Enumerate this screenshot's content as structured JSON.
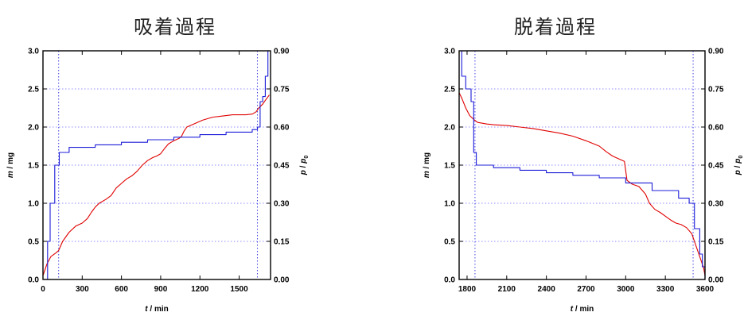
{
  "chart_data": [
    {
      "type": "line",
      "title": "吸着過程",
      "xlabel": "t / min",
      "ylabel_left": "m / mg",
      "ylabel_right": "p / p0",
      "xlim": [
        0,
        1740
      ],
      "xticks": [
        0,
        300,
        600,
        900,
        1200,
        1500
      ],
      "ylim_left": [
        0.0,
        3.0
      ],
      "yticks_left": [
        "0.0",
        "0.5",
        "1.0",
        "1.5",
        "2.0",
        "2.5",
        "3.0"
      ],
      "ylim_right": [
        0.0,
        0.9
      ],
      "yticks_right": [
        "0.00",
        "0.15",
        "0.30",
        "0.45",
        "0.60",
        "0.75",
        "0.90"
      ],
      "grid_y": "dotted",
      "vlines": [
        120,
        1640
      ],
      "series": [
        {
          "color": "#e00000",
          "axis": "left",
          "x": [
            0,
            30,
            60,
            100,
            120,
            150,
            200,
            250,
            300,
            340,
            370,
            400,
            430,
            480,
            520,
            560,
            600,
            640,
            680,
            720,
            760,
            800,
            840,
            870,
            900,
            930,
            960,
            1000,
            1040,
            1060,
            1080,
            1100,
            1140,
            1180,
            1220,
            1260,
            1300,
            1350,
            1400,
            1450,
            1500,
            1550,
            1600,
            1630,
            1650,
            1680,
            1700,
            1730
          ],
          "y": [
            0.05,
            0.2,
            0.3,
            0.35,
            0.38,
            0.5,
            0.62,
            0.7,
            0.74,
            0.8,
            0.88,
            0.95,
            1.0,
            1.05,
            1.1,
            1.2,
            1.26,
            1.32,
            1.36,
            1.42,
            1.5,
            1.56,
            1.6,
            1.62,
            1.65,
            1.72,
            1.78,
            1.82,
            1.85,
            1.88,
            1.95,
            2.0,
            2.03,
            2.06,
            2.09,
            2.11,
            2.13,
            2.14,
            2.15,
            2.16,
            2.16,
            2.16,
            2.17,
            2.2,
            2.25,
            2.3,
            2.35,
            2.42
          ]
        },
        {
          "color": "#1c1cd8",
          "axis": "right",
          "step": true,
          "x": [
            0,
            35,
            55,
            90,
            125,
            200,
            400,
            600,
            800,
            1000,
            1200,
            1400,
            1600,
            1640,
            1660,
            1680,
            1700,
            1720,
            1740
          ],
          "y": [
            0.0,
            0.15,
            0.3,
            0.45,
            0.5,
            0.52,
            0.53,
            0.54,
            0.55,
            0.56,
            0.57,
            0.58,
            0.59,
            0.6,
            0.7,
            0.72,
            0.8,
            0.9,
            0.9
          ]
        }
      ]
    },
    {
      "type": "line",
      "title": "脱着過程",
      "xlabel": "t / min",
      "ylabel_left": "m / mg",
      "ylabel_right": "p / p0",
      "xlim": [
        1740,
        3600
      ],
      "xticks": [
        1800,
        2100,
        2400,
        2700,
        3000,
        3300,
        3600
      ],
      "ylim_left": [
        0.0,
        3.0
      ],
      "yticks_left": [
        "0.0",
        "0.5",
        "1.0",
        "1.5",
        "2.0",
        "2.5",
        "3.0"
      ],
      "ylim_right": [
        0.0,
        0.9
      ],
      "yticks_right": [
        "0.00",
        "0.15",
        "0.30",
        "0.45",
        "0.60",
        "0.75",
        "0.90"
      ],
      "grid_y": "dotted",
      "vlines": [
        1860,
        3510
      ],
      "series": [
        {
          "color": "#e00000",
          "axis": "left",
          "x": [
            1740,
            1760,
            1790,
            1820,
            1850,
            1880,
            1950,
            2000,
            2100,
            2200,
            2300,
            2400,
            2500,
            2600,
            2700,
            2800,
            2850,
            2900,
            2950,
            2990,
            3010,
            3050,
            3100,
            3150,
            3180,
            3220,
            3260,
            3300,
            3340,
            3380,
            3420,
            3460,
            3500,
            3520,
            3550,
            3570,
            3590,
            3600
          ],
          "y": [
            2.45,
            2.38,
            2.25,
            2.15,
            2.1,
            2.06,
            2.04,
            2.03,
            2.02,
            2.0,
            1.98,
            1.95,
            1.92,
            1.88,
            1.82,
            1.75,
            1.68,
            1.62,
            1.58,
            1.55,
            1.3,
            1.25,
            1.22,
            1.12,
            1.0,
            0.92,
            0.88,
            0.83,
            0.78,
            0.74,
            0.72,
            0.68,
            0.6,
            0.5,
            0.35,
            0.25,
            0.15,
            0.05
          ]
        },
        {
          "color": "#1c1cd8",
          "axis": "right",
          "step": true,
          "x": [
            1740,
            1760,
            1790,
            1830,
            1850,
            1870,
            2000,
            2200,
            2400,
            2600,
            2800,
            3000,
            3200,
            3400,
            3480,
            3520,
            3560,
            3580,
            3600
          ],
          "y": [
            0.9,
            0.8,
            0.75,
            0.7,
            0.5,
            0.45,
            0.44,
            0.43,
            0.42,
            0.41,
            0.4,
            0.38,
            0.35,
            0.32,
            0.3,
            0.2,
            0.1,
            0.05,
            0.0
          ]
        }
      ]
    }
  ]
}
